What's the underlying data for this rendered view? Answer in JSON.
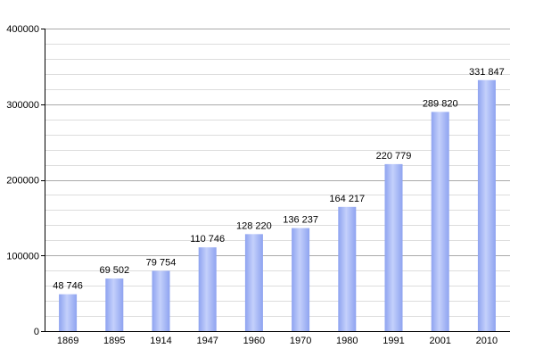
{
  "colors": {
    "bar_edge": "#9aaef3",
    "bar_center": "#c4d0fb",
    "bar_side": "#8ea3f0",
    "grid_major": "#aaaaaa",
    "grid_minor": "#dddddd",
    "axis": "#000000"
  },
  "chart_data": {
    "type": "bar",
    "title": "",
    "xlabel": "",
    "ylabel": "",
    "categories": [
      "1869",
      "1895",
      "1914",
      "1947",
      "1960",
      "1970",
      "1980",
      "1991",
      "2001",
      "2010"
    ],
    "values": [
      48746,
      69502,
      79754,
      110746,
      128220,
      136237,
      164217,
      220779,
      289820,
      331847
    ],
    "data_labels": [
      "48 746",
      "69 502",
      "79 754",
      "110 746",
      "128 220",
      "136 237",
      "164 217",
      "220 779",
      "289 820",
      "331 847"
    ],
    "ylim": [
      0,
      400000
    ],
    "yticks": [
      0,
      100000,
      200000,
      300000,
      400000
    ],
    "ytick_labels": [
      "0",
      "100000",
      "200000",
      "300000",
      "400000"
    ],
    "minor_grid_step": 20000,
    "grid": true,
    "legend": "none"
  }
}
